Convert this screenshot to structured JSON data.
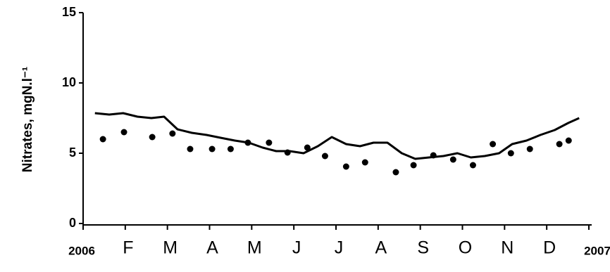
{
  "chart_data": {
    "type": "line",
    "ylabel": "Nitrates, mgN.l⁻¹",
    "xlim": [
      0,
      12
    ],
    "xticks": [
      {
        "value": 0,
        "label": "2006"
      },
      {
        "value": 1,
        "label": "F"
      },
      {
        "value": 2,
        "label": "M"
      },
      {
        "value": 3,
        "label": "A"
      },
      {
        "value": 4,
        "label": "M"
      },
      {
        "value": 5,
        "label": "J"
      },
      {
        "value": 6,
        "label": "J"
      },
      {
        "value": 7,
        "label": "A"
      },
      {
        "value": 8,
        "label": "S"
      },
      {
        "value": 9,
        "label": "O"
      },
      {
        "value": 10,
        "label": "N"
      },
      {
        "value": 11,
        "label": "D"
      },
      {
        "value": 12,
        "label": "2007"
      }
    ],
    "ylim": [
      0,
      15
    ],
    "yticks": [
      0,
      5,
      10,
      15
    ],
    "grid": false,
    "series": [
      {
        "type": "line",
        "color": "#000000",
        "x": [
          0.28,
          0.62,
          0.95,
          1.29,
          1.62,
          1.92,
          2.24,
          2.58,
          2.93,
          3.26,
          3.6,
          3.93,
          4.26,
          4.58,
          4.9,
          5.23,
          5.57,
          5.9,
          6.24,
          6.57,
          6.89,
          7.22,
          7.56,
          7.88,
          8.21,
          8.55,
          8.88,
          9.2,
          9.53,
          9.87,
          10.18,
          10.52,
          10.85,
          11.19,
          11.51,
          11.77
        ],
        "values": [
          7.85,
          7.75,
          7.85,
          7.6,
          7.5,
          7.6,
          6.7,
          6.45,
          6.3,
          6.1,
          5.9,
          5.75,
          5.4,
          5.15,
          5.15,
          5.0,
          5.5,
          6.15,
          5.65,
          5.5,
          5.75,
          5.75,
          5.0,
          4.6,
          4.7,
          4.8,
          5.0,
          4.7,
          4.8,
          5.0,
          5.65,
          5.9,
          6.3,
          6.65,
          7.15,
          7.5
        ]
      },
      {
        "type": "scatter",
        "color": "#000000",
        "x": [
          0.47,
          0.97,
          1.64,
          2.12,
          2.54,
          3.06,
          3.5,
          3.91,
          4.41,
          4.85,
          5.32,
          5.74,
          6.24,
          6.69,
          7.42,
          7.84,
          8.31,
          8.78,
          9.25,
          9.72,
          10.15,
          10.6,
          11.3,
          11.52
        ],
        "values": [
          6.0,
          6.5,
          6.15,
          6.4,
          5.3,
          5.3,
          5.3,
          5.75,
          5.75,
          5.05,
          5.4,
          4.8,
          4.05,
          4.35,
          3.65,
          4.15,
          4.85,
          4.55,
          4.15,
          5.65,
          5.0,
          5.3,
          5.65,
          5.9
        ]
      }
    ]
  }
}
